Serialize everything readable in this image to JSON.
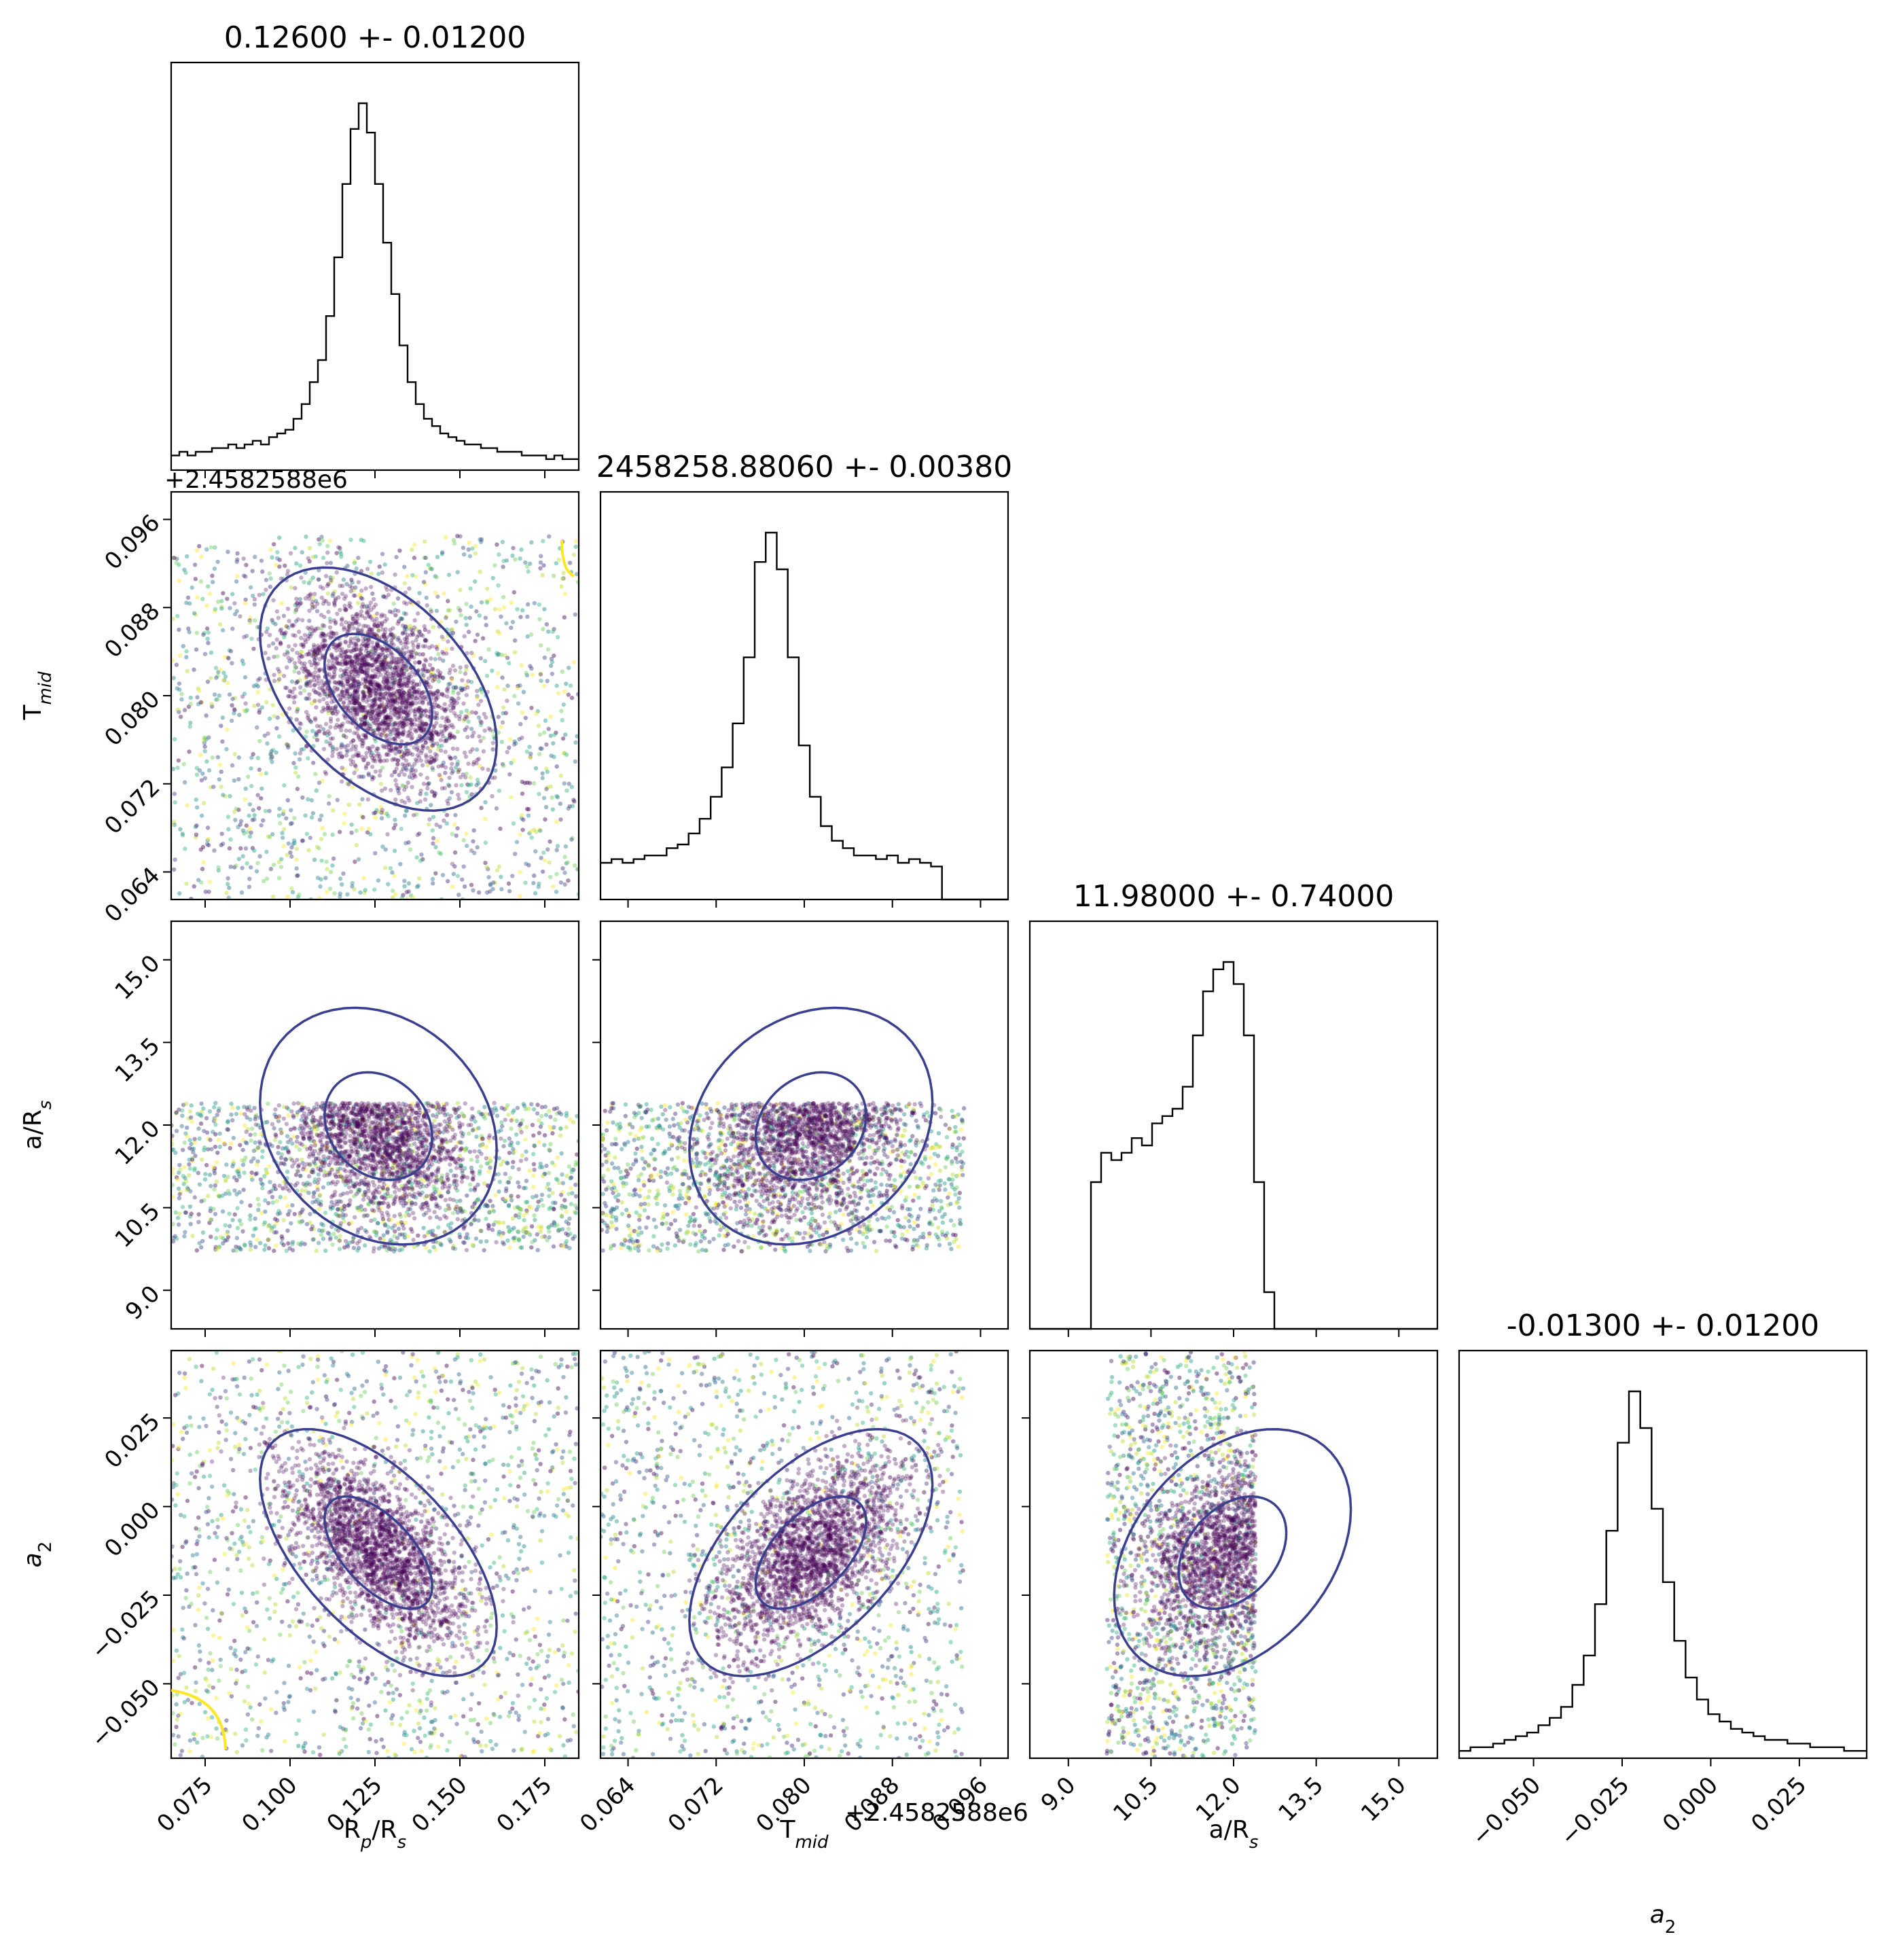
{
  "chart_data": {
    "type": "corner",
    "parameters": [
      {
        "key": "rp",
        "label_html": "R<tspan baseline-shift='sub' font-size='70%' font-style='italic'>p</tspan>/R<tspan baseline-shift='sub' font-size='70%' font-style='italic'>s</tspan>",
        "label_text": "Rp/Rs",
        "range": [
          0.065,
          0.185
        ],
        "ticks": [
          "0.075",
          "0.100",
          "0.125",
          "0.150",
          "0.175"
        ],
        "tick_values": [
          0.075,
          0.1,
          0.125,
          0.15,
          0.175
        ],
        "title": "0.12600 +- 0.01200",
        "median": 0.126,
        "sigma": 0.012
      },
      {
        "key": "tmid",
        "label_text": "Tmid",
        "range": [
          0.0615,
          0.0985
        ],
        "ticks": [
          "0.064",
          "0.072",
          "0.080",
          "0.088",
          "0.096"
        ],
        "tick_values": [
          0.064,
          0.072,
          0.08,
          0.088,
          0.096
        ],
        "offset_text": "+2.4582588e6",
        "title": "2458258.88060 +- 0.00380",
        "median": 0.0806,
        "sigma": 0.0038
      },
      {
        "key": "ars",
        "label_text": "a/Rs",
        "range": [
          8.3,
          15.7
        ],
        "ticks": [
          "9.0",
          "10.5",
          "12.0",
          "13.5",
          "15.0"
        ],
        "tick_values": [
          9.0,
          10.5,
          12.0,
          13.5,
          15.0
        ],
        "title": "11.98000 +- 0.74000",
        "median": 11.98,
        "sigma": 0.74
      },
      {
        "key": "a2",
        "label_text": "a2",
        "range": [
          -0.071,
          0.044
        ],
        "ticks": [
          "−0.050",
          "−0.025",
          "0.000",
          "0.025"
        ],
        "tick_values": [
          -0.05,
          -0.025,
          0.0,
          0.025
        ],
        "title": "-0.01300 +- 0.01200",
        "median": -0.013,
        "sigma": 0.012
      }
    ],
    "row_offset_text": "+2.4582588e6",
    "histograms": {
      "rp": [
        0.04,
        0.05,
        0.04,
        0.05,
        0.05,
        0.06,
        0.06,
        0.07,
        0.06,
        0.07,
        0.08,
        0.07,
        0.09,
        0.1,
        0.11,
        0.14,
        0.18,
        0.24,
        0.3,
        0.42,
        0.58,
        0.78,
        0.93,
        1.0,
        0.92,
        0.78,
        0.62,
        0.48,
        0.34,
        0.24,
        0.18,
        0.14,
        0.12,
        0.1,
        0.09,
        0.08,
        0.07,
        0.07,
        0.06,
        0.06,
        0.05,
        0.05,
        0.05,
        0.04,
        0.04,
        0.04,
        0.03,
        0.04,
        0.03,
        0.03
      ],
      "tmid": [
        0.1,
        0.11,
        0.1,
        0.11,
        0.12,
        0.12,
        0.14,
        0.15,
        0.18,
        0.22,
        0.28,
        0.36,
        0.48,
        0.66,
        0.92,
        1.0,
        0.9,
        0.66,
        0.42,
        0.28,
        0.2,
        0.16,
        0.14,
        0.12,
        0.12,
        0.11,
        0.12,
        0.1,
        0.11,
        0.1,
        0.09,
        0.0,
        0.0,
        0.0,
        0.0,
        0.0,
        0.0
      ],
      "ars": [
        0.0,
        0.0,
        0.0,
        0.0,
        0.0,
        0.0,
        0.4,
        0.48,
        0.46,
        0.48,
        0.52,
        0.5,
        0.56,
        0.58,
        0.6,
        0.66,
        0.8,
        0.92,
        0.98,
        1.0,
        0.94,
        0.8,
        0.4,
        0.1,
        0.0,
        0.0,
        0.0,
        0.0,
        0.0,
        0.0,
        0.0,
        0.0,
        0.0,
        0.0,
        0.0,
        0.0,
        0.0,
        0.0,
        0.0,
        0.0
      ],
      "a2": [
        0.02,
        0.03,
        0.03,
        0.04,
        0.05,
        0.06,
        0.07,
        0.09,
        0.11,
        0.14,
        0.2,
        0.28,
        0.42,
        0.62,
        0.86,
        1.0,
        0.9,
        0.68,
        0.48,
        0.32,
        0.22,
        0.16,
        0.12,
        0.1,
        0.08,
        0.07,
        0.06,
        0.05,
        0.05,
        0.04,
        0.04,
        0.03,
        0.03,
        0.03,
        0.02,
        0.02
      ]
    },
    "pairs": [
      {
        "row": "tmid",
        "col": "rp",
        "corr": -0.45
      },
      {
        "row": "ars",
        "col": "rp",
        "corr": -0.2
      },
      {
        "row": "ars",
        "col": "tmid",
        "corr": 0.2
      },
      {
        "row": "a2",
        "col": "rp",
        "corr": -0.6
      },
      {
        "row": "a2",
        "col": "tmid",
        "corr": 0.55
      },
      {
        "row": "a2",
        "col": "ars",
        "corr": 0.35
      }
    ],
    "contour_levels": [
      "1-sigma",
      "2-sigma"
    ],
    "colors": {
      "contour": "#3b3f8f",
      "points_dark": "#440154",
      "points_light": "#fde725",
      "hist": "#000000",
      "yellow_contour": "#fde725"
    }
  }
}
